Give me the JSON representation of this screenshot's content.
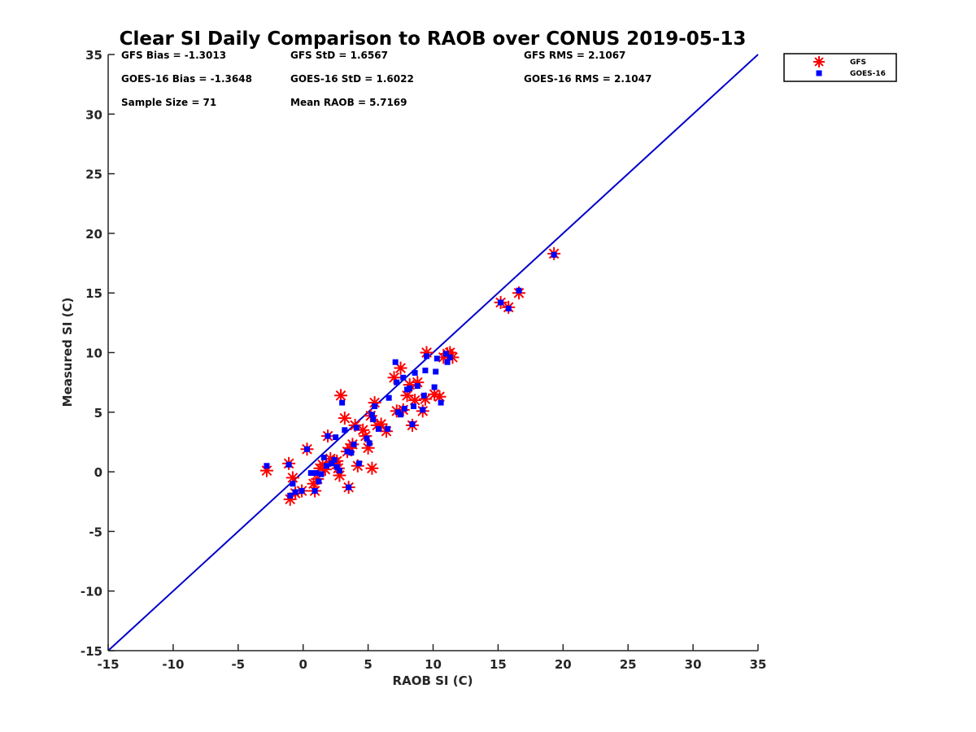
{
  "chart_data": {
    "type": "scatter",
    "title": "Clear SI Daily Comparison to RAOB over CONUS 2019-05-13",
    "xlabel": "RAOB SI (C)",
    "ylabel": "Measured SI (C)",
    "xlim": [
      -15,
      35
    ],
    "ylim": [
      -15,
      35
    ],
    "xticks": [
      -15,
      -10,
      -5,
      0,
      5,
      10,
      15,
      20,
      25,
      30,
      35
    ],
    "yticks": [
      -15,
      -10,
      -5,
      0,
      5,
      10,
      15,
      20,
      25,
      30,
      35
    ],
    "grid": false,
    "legend_placement": "outside-top-right",
    "colors": {
      "gfs": "#ff0000",
      "goes16": "#0000ff",
      "reference_line": "#0000cc"
    },
    "reference_line": {
      "from": [
        -15,
        -15
      ],
      "to": [
        35,
        35
      ]
    },
    "stats": [
      [
        "GFS Bias = -1.3013",
        "GFS StD = 1.6567",
        "GFS RMS = 2.1067"
      ],
      [
        "GOES-16 Bias = -1.3648",
        "GOES-16 StD = 1.6022",
        "GOES-16 RMS = 2.1047"
      ],
      [
        "Sample Size = 71",
        "Mean RAOB = 5.7169",
        ""
      ]
    ],
    "series": [
      {
        "name": "GFS",
        "marker": "star",
        "points": [
          [
            -2.8,
            0.1
          ],
          [
            -1.1,
            0.7
          ],
          [
            -1.0,
            -2.3
          ],
          [
            -0.8,
            -0.5
          ],
          [
            -0.6,
            -1.8
          ],
          [
            -0.1,
            -1.6
          ],
          [
            0.3,
            1.9
          ],
          [
            0.8,
            -1.0
          ],
          [
            0.9,
            -1.6
          ],
          [
            1.1,
            -0.6
          ],
          [
            1.3,
            0.3
          ],
          [
            1.5,
            0.6
          ],
          [
            1.7,
            0.2
          ],
          [
            1.9,
            3.0
          ],
          [
            2.1,
            1.1
          ],
          [
            2.4,
            0.8
          ],
          [
            2.6,
            0.9
          ],
          [
            2.7,
            0.3
          ],
          [
            2.8,
            -0.3
          ],
          [
            2.9,
            6.4
          ],
          [
            3.2,
            4.5
          ],
          [
            3.4,
            1.7
          ],
          [
            3.5,
            -1.3
          ],
          [
            3.6,
            2.0
          ],
          [
            3.8,
            2.3
          ],
          [
            4.0,
            3.9
          ],
          [
            4.2,
            0.5
          ],
          [
            4.6,
            3.5
          ],
          [
            4.8,
            3.0
          ],
          [
            5.0,
            2.0
          ],
          [
            5.2,
            4.7
          ],
          [
            5.3,
            0.3
          ],
          [
            5.5,
            5.8
          ],
          [
            5.7,
            3.9
          ],
          [
            6.0,
            4.0
          ],
          [
            6.4,
            3.4
          ],
          [
            7.0,
            7.9
          ],
          [
            7.2,
            5.1
          ],
          [
            7.5,
            8.7
          ],
          [
            7.7,
            5.2
          ],
          [
            8.0,
            6.4
          ],
          [
            8.2,
            7.3
          ],
          [
            8.4,
            3.9
          ],
          [
            8.6,
            6.0
          ],
          [
            8.8,
            7.5
          ],
          [
            9.2,
            5.1
          ],
          [
            9.4,
            6.1
          ],
          [
            9.5,
            10.0
          ],
          [
            10.1,
            6.5
          ],
          [
            10.5,
            6.3
          ],
          [
            10.8,
            9.6
          ],
          [
            11.1,
            9.9
          ],
          [
            11.3,
            10.0
          ],
          [
            11.5,
            9.6
          ],
          [
            15.2,
            14.2
          ],
          [
            15.8,
            13.8
          ],
          [
            16.6,
            15.0
          ],
          [
            19.3,
            18.3
          ]
        ]
      },
      {
        "name": "GOES-16",
        "marker": "square",
        "points": [
          [
            -2.8,
            0.5
          ],
          [
            -1.1,
            0.6
          ],
          [
            -1.0,
            -2.0
          ],
          [
            -0.8,
            -1.0
          ],
          [
            -0.6,
            -1.7
          ],
          [
            -0.1,
            -1.6
          ],
          [
            0.3,
            1.9
          ],
          [
            0.6,
            -0.1
          ],
          [
            0.9,
            -1.6
          ],
          [
            1.0,
            -0.1
          ],
          [
            1.2,
            -0.8
          ],
          [
            1.4,
            -0.2
          ],
          [
            1.6,
            1.2
          ],
          [
            1.8,
            0.5
          ],
          [
            1.9,
            3.0
          ],
          [
            2.2,
            0.7
          ],
          [
            2.4,
            1.0
          ],
          [
            2.5,
            2.9
          ],
          [
            2.6,
            0.4
          ],
          [
            2.8,
            0.1
          ],
          [
            3.0,
            5.8
          ],
          [
            3.2,
            3.5
          ],
          [
            3.4,
            1.7
          ],
          [
            3.5,
            -1.3
          ],
          [
            3.7,
            1.6
          ],
          [
            3.9,
            2.3
          ],
          [
            4.1,
            3.7
          ],
          [
            4.3,
            0.7
          ],
          [
            4.9,
            2.8
          ],
          [
            5.1,
            2.4
          ],
          [
            5.3,
            4.8
          ],
          [
            5.4,
            4.4
          ],
          [
            5.5,
            5.5
          ],
          [
            5.8,
            3.6
          ],
          [
            6.5,
            3.6
          ],
          [
            6.6,
            6.2
          ],
          [
            7.1,
            9.2
          ],
          [
            7.2,
            7.5
          ],
          [
            7.3,
            5.0
          ],
          [
            7.5,
            4.8
          ],
          [
            7.7,
            7.9
          ],
          [
            7.8,
            5.3
          ],
          [
            8.0,
            6.9
          ],
          [
            8.2,
            7.0
          ],
          [
            8.4,
            4.0
          ],
          [
            8.5,
            5.5
          ],
          [
            8.6,
            8.3
          ],
          [
            8.8,
            7.2
          ],
          [
            9.2,
            5.2
          ],
          [
            9.3,
            6.4
          ],
          [
            9.4,
            8.5
          ],
          [
            9.5,
            9.7
          ],
          [
            10.1,
            7.1
          ],
          [
            10.2,
            8.4
          ],
          [
            10.3,
            9.5
          ],
          [
            10.6,
            5.8
          ],
          [
            11.0,
            9.9
          ],
          [
            11.1,
            9.2
          ],
          [
            11.3,
            9.6
          ],
          [
            15.2,
            14.2
          ],
          [
            15.8,
            13.7
          ],
          [
            16.6,
            15.2
          ],
          [
            19.3,
            18.2
          ]
        ]
      }
    ]
  }
}
